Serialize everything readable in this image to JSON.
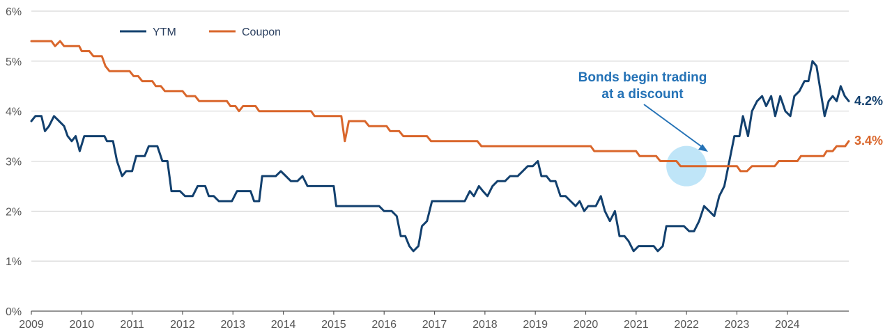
{
  "chart_data": {
    "type": "line",
    "x_start_year": 2009,
    "x_end_year": 2024,
    "x_ticks": [
      "2009",
      "2010",
      "2011",
      "2012",
      "2013",
      "2014",
      "2015",
      "2016",
      "2017",
      "2018",
      "2019",
      "2020",
      "2021",
      "2022",
      "2023",
      "2024"
    ],
    "ylim": [
      0,
      6
    ],
    "y_ticks": [
      "0%",
      "1%",
      "2%",
      "3%",
      "4%",
      "5%",
      "6%"
    ],
    "grid": true,
    "legend_position": "top-left",
    "series": [
      {
        "name": "YTM",
        "color": "#12406e",
        "end_label": "4.2%",
        "points": [
          [
            2009.0,
            3.8
          ],
          [
            2009.08,
            3.9
          ],
          [
            2009.2,
            3.9
          ],
          [
            2009.27,
            3.6
          ],
          [
            2009.35,
            3.7
          ],
          [
            2009.45,
            3.9
          ],
          [
            2009.55,
            3.8
          ],
          [
            2009.65,
            3.7
          ],
          [
            2009.72,
            3.5
          ],
          [
            2009.8,
            3.4
          ],
          [
            2009.88,
            3.5
          ],
          [
            2009.96,
            3.2
          ],
          [
            2010.05,
            3.5
          ],
          [
            2010.15,
            3.5
          ],
          [
            2010.3,
            3.5
          ],
          [
            2010.45,
            3.5
          ],
          [
            2010.5,
            3.4
          ],
          [
            2010.62,
            3.4
          ],
          [
            2010.7,
            3.0
          ],
          [
            2010.8,
            2.7
          ],
          [
            2010.88,
            2.8
          ],
          [
            2011.0,
            2.8
          ],
          [
            2011.08,
            3.1
          ],
          [
            2011.25,
            3.1
          ],
          [
            2011.33,
            3.3
          ],
          [
            2011.5,
            3.3
          ],
          [
            2011.6,
            3.0
          ],
          [
            2011.7,
            3.0
          ],
          [
            2011.78,
            2.4
          ],
          [
            2011.95,
            2.4
          ],
          [
            2012.05,
            2.3
          ],
          [
            2012.2,
            2.3
          ],
          [
            2012.3,
            2.5
          ],
          [
            2012.45,
            2.5
          ],
          [
            2012.52,
            2.3
          ],
          [
            2012.62,
            2.3
          ],
          [
            2012.72,
            2.2
          ],
          [
            2012.98,
            2.2
          ],
          [
            2013.08,
            2.4
          ],
          [
            2013.25,
            2.4
          ],
          [
            2013.35,
            2.4
          ],
          [
            2013.42,
            2.2
          ],
          [
            2013.52,
            2.2
          ],
          [
            2013.58,
            2.7
          ],
          [
            2013.85,
            2.7
          ],
          [
            2013.95,
            2.8
          ],
          [
            2014.05,
            2.7
          ],
          [
            2014.15,
            2.6
          ],
          [
            2014.28,
            2.6
          ],
          [
            2014.38,
            2.7
          ],
          [
            2014.48,
            2.5
          ],
          [
            2014.6,
            2.5
          ],
          [
            2015.0,
            2.5
          ],
          [
            2015.05,
            2.1
          ],
          [
            2015.5,
            2.1
          ],
          [
            2015.9,
            2.1
          ],
          [
            2016.0,
            2.0
          ],
          [
            2016.15,
            2.0
          ],
          [
            2016.25,
            1.9
          ],
          [
            2016.33,
            1.5
          ],
          [
            2016.42,
            1.5
          ],
          [
            2016.5,
            1.3
          ],
          [
            2016.58,
            1.2
          ],
          [
            2016.68,
            1.3
          ],
          [
            2016.75,
            1.7
          ],
          [
            2016.85,
            1.8
          ],
          [
            2016.95,
            2.2
          ],
          [
            2017.2,
            2.2
          ],
          [
            2017.45,
            2.2
          ],
          [
            2017.6,
            2.2
          ],
          [
            2017.7,
            2.4
          ],
          [
            2017.78,
            2.3
          ],
          [
            2017.88,
            2.5
          ],
          [
            2017.96,
            2.4
          ],
          [
            2018.05,
            2.3
          ],
          [
            2018.15,
            2.5
          ],
          [
            2018.25,
            2.6
          ],
          [
            2018.4,
            2.6
          ],
          [
            2018.5,
            2.7
          ],
          [
            2018.65,
            2.7
          ],
          [
            2018.75,
            2.8
          ],
          [
            2018.85,
            2.9
          ],
          [
            2018.95,
            2.9
          ],
          [
            2019.05,
            3.0
          ],
          [
            2019.12,
            2.7
          ],
          [
            2019.22,
            2.7
          ],
          [
            2019.3,
            2.6
          ],
          [
            2019.4,
            2.6
          ],
          [
            2019.5,
            2.3
          ],
          [
            2019.6,
            2.3
          ],
          [
            2019.7,
            2.2
          ],
          [
            2019.8,
            2.1
          ],
          [
            2019.88,
            2.2
          ],
          [
            2019.97,
            2.0
          ],
          [
            2020.05,
            2.1
          ],
          [
            2020.2,
            2.1
          ],
          [
            2020.3,
            2.3
          ],
          [
            2020.38,
            2.0
          ],
          [
            2020.48,
            1.8
          ],
          [
            2020.58,
            2.0
          ],
          [
            2020.67,
            1.5
          ],
          [
            2020.77,
            1.5
          ],
          [
            2020.85,
            1.4
          ],
          [
            2020.95,
            1.2
          ],
          [
            2021.05,
            1.3
          ],
          [
            2021.2,
            1.3
          ],
          [
            2021.35,
            1.3
          ],
          [
            2021.43,
            1.2
          ],
          [
            2021.53,
            1.3
          ],
          [
            2021.6,
            1.7
          ],
          [
            2021.75,
            1.7
          ],
          [
            2021.95,
            1.7
          ],
          [
            2022.05,
            1.6
          ],
          [
            2022.15,
            1.6
          ],
          [
            2022.25,
            1.8
          ],
          [
            2022.35,
            2.1
          ],
          [
            2022.45,
            2.0
          ],
          [
            2022.55,
            1.9
          ],
          [
            2022.65,
            2.3
          ],
          [
            2022.75,
            2.5
          ],
          [
            2022.85,
            3.0
          ],
          [
            2022.95,
            3.5
          ],
          [
            2023.05,
            3.5
          ],
          [
            2023.12,
            3.9
          ],
          [
            2023.22,
            3.5
          ],
          [
            2023.3,
            4.0
          ],
          [
            2023.4,
            4.2
          ],
          [
            2023.5,
            4.3
          ],
          [
            2023.58,
            4.1
          ],
          [
            2023.68,
            4.3
          ],
          [
            2023.76,
            3.9
          ],
          [
            2023.86,
            4.3
          ],
          [
            2023.96,
            4.0
          ],
          [
            2024.06,
            3.9
          ],
          [
            2024.14,
            4.3
          ],
          [
            2024.24,
            4.4
          ],
          [
            2024.34,
            4.6
          ],
          [
            2024.42,
            4.6
          ],
          [
            2024.5,
            5.0
          ],
          [
            2024.58,
            4.9
          ],
          [
            2024.66,
            4.4
          ],
          [
            2024.74,
            3.9
          ],
          [
            2024.82,
            4.2
          ],
          [
            2024.9,
            4.3
          ],
          [
            2024.98,
            4.2
          ],
          [
            2025.06,
            4.5
          ],
          [
            2025.14,
            4.3
          ],
          [
            2025.22,
            4.2
          ]
        ]
      },
      {
        "name": "Coupon",
        "color": "#d9662b",
        "end_label": "3.4%",
        "points": [
          [
            2009.0,
            5.4
          ],
          [
            2009.2,
            5.4
          ],
          [
            2009.4,
            5.4
          ],
          [
            2009.47,
            5.3
          ],
          [
            2009.57,
            5.4
          ],
          [
            2009.65,
            5.3
          ],
          [
            2009.85,
            5.3
          ],
          [
            2009.95,
            5.3
          ],
          [
            2010.0,
            5.2
          ],
          [
            2010.15,
            5.2
          ],
          [
            2010.23,
            5.1
          ],
          [
            2010.4,
            5.1
          ],
          [
            2010.47,
            4.9
          ],
          [
            2010.55,
            4.8
          ],
          [
            2010.75,
            4.8
          ],
          [
            2010.95,
            4.8
          ],
          [
            2011.03,
            4.7
          ],
          [
            2011.12,
            4.7
          ],
          [
            2011.2,
            4.6
          ],
          [
            2011.4,
            4.6
          ],
          [
            2011.47,
            4.5
          ],
          [
            2011.57,
            4.5
          ],
          [
            2011.65,
            4.4
          ],
          [
            2011.8,
            4.4
          ],
          [
            2012.0,
            4.4
          ],
          [
            2012.08,
            4.3
          ],
          [
            2012.25,
            4.3
          ],
          [
            2012.33,
            4.2
          ],
          [
            2012.6,
            4.2
          ],
          [
            2012.88,
            4.2
          ],
          [
            2012.95,
            4.1
          ],
          [
            2013.05,
            4.1
          ],
          [
            2013.12,
            4.0
          ],
          [
            2013.2,
            4.1
          ],
          [
            2013.45,
            4.1
          ],
          [
            2013.52,
            4.0
          ],
          [
            2013.85,
            4.0
          ],
          [
            2014.2,
            4.0
          ],
          [
            2014.55,
            4.0
          ],
          [
            2014.62,
            3.9
          ],
          [
            2014.9,
            3.9
          ],
          [
            2015.15,
            3.9
          ],
          [
            2015.22,
            3.4
          ],
          [
            2015.3,
            3.8
          ],
          [
            2015.5,
            3.8
          ],
          [
            2015.62,
            3.8
          ],
          [
            2015.7,
            3.7
          ],
          [
            2016.05,
            3.7
          ],
          [
            2016.12,
            3.6
          ],
          [
            2016.3,
            3.6
          ],
          [
            2016.38,
            3.5
          ],
          [
            2016.6,
            3.5
          ],
          [
            2016.85,
            3.5
          ],
          [
            2016.93,
            3.4
          ],
          [
            2017.3,
            3.4
          ],
          [
            2017.55,
            3.4
          ],
          [
            2017.85,
            3.4
          ],
          [
            2017.93,
            3.3
          ],
          [
            2018.3,
            3.3
          ],
          [
            2018.7,
            3.3
          ],
          [
            2019.0,
            3.3
          ],
          [
            2019.5,
            3.3
          ],
          [
            2019.9,
            3.3
          ],
          [
            2020.1,
            3.3
          ],
          [
            2020.17,
            3.2
          ],
          [
            2020.4,
            3.2
          ],
          [
            2020.7,
            3.2
          ],
          [
            2020.9,
            3.2
          ],
          [
            2021.0,
            3.2
          ],
          [
            2021.07,
            3.1
          ],
          [
            2021.4,
            3.1
          ],
          [
            2021.48,
            3.0
          ],
          [
            2021.8,
            3.0
          ],
          [
            2021.88,
            2.9
          ],
          [
            2022.1,
            2.9
          ],
          [
            2022.45,
            2.9
          ],
          [
            2022.65,
            2.9
          ],
          [
            2022.85,
            2.9
          ],
          [
            2023.0,
            2.9
          ],
          [
            2023.07,
            2.8
          ],
          [
            2023.2,
            2.8
          ],
          [
            2023.3,
            2.9
          ],
          [
            2023.55,
            2.9
          ],
          [
            2023.75,
            2.9
          ],
          [
            2023.83,
            3.0
          ],
          [
            2024.05,
            3.0
          ],
          [
            2024.2,
            3.0
          ],
          [
            2024.27,
            3.1
          ],
          [
            2024.55,
            3.1
          ],
          [
            2024.72,
            3.1
          ],
          [
            2024.78,
            3.2
          ],
          [
            2024.9,
            3.2
          ],
          [
            2024.98,
            3.3
          ],
          [
            2025.1,
            3.3
          ],
          [
            2025.15,
            3.3
          ],
          [
            2025.22,
            3.4
          ]
        ]
      }
    ],
    "annotation": {
      "lines": [
        "Bonds begin trading",
        "at a discount"
      ],
      "color": "#2472b6",
      "highlight_color": "#a9dcf5",
      "target_x": 2022.0,
      "target_y": 2.9
    }
  }
}
